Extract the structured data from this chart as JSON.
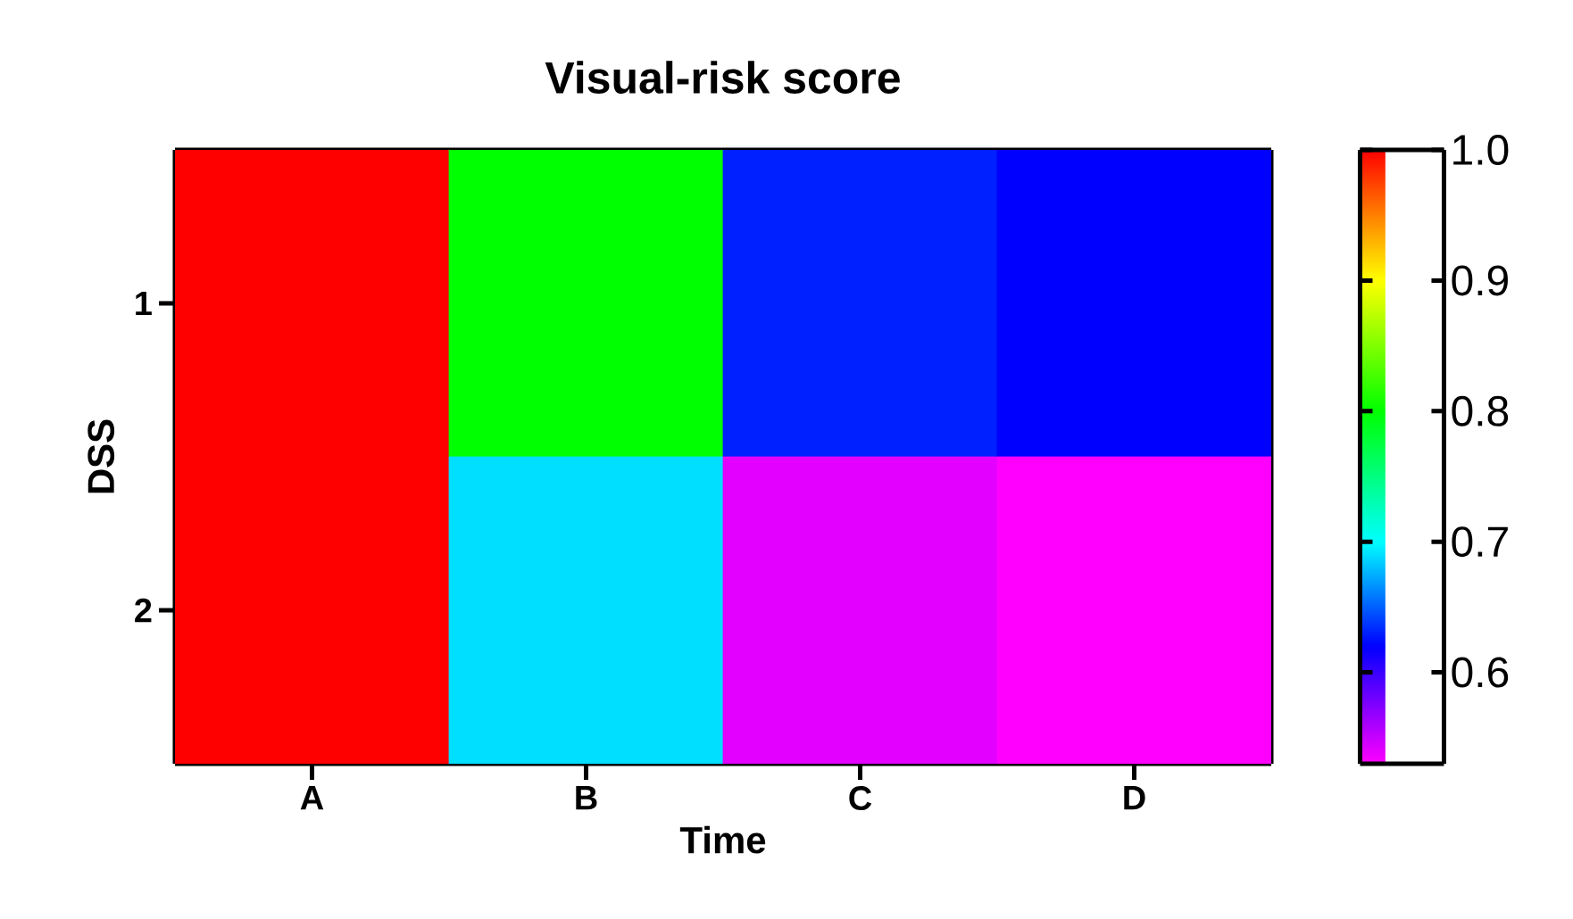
{
  "chart_data": {
    "type": "heatmap",
    "title": "Visual-risk score",
    "xlabel": "Time",
    "ylabel": "DSS",
    "categories": [
      "A",
      "B",
      "C",
      "D"
    ],
    "y_categories": [
      "1",
      "2"
    ],
    "cells": [
      [
        1.0,
        0.8,
        0.63,
        0.62
      ],
      [
        1.0,
        0.69,
        0.54,
        0.53
      ]
    ],
    "clim": [
      0.53,
      1.0
    ],
    "cticks": [
      0.6,
      0.7,
      0.8,
      0.9,
      {
        "value": 1.0,
        "label": "1.0"
      }
    ]
  }
}
